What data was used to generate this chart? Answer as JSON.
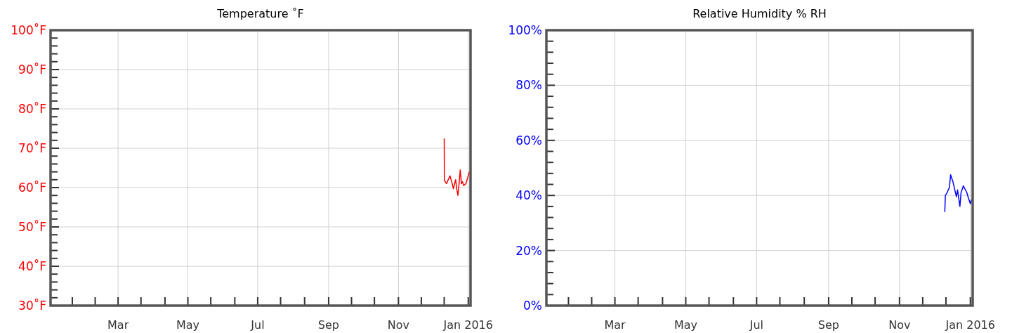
{
  "chart_data": [
    {
      "type": "line",
      "title": "Temperature ˚F",
      "grid": true,
      "marker": "none",
      "line_style": "solid",
      "xlim": [
        "2015-01-01",
        "2016-01-03"
      ],
      "xticks": [
        {
          "value": "2015-01-20",
          "label": null
        },
        {
          "value": "2015-02-09",
          "label": null
        },
        {
          "value": "2015-03-01",
          "label": "Mar"
        },
        {
          "value": "2015-03-21",
          "label": null
        },
        {
          "value": "2015-04-11",
          "label": null
        },
        {
          "value": "2015-05-01",
          "label": "May"
        },
        {
          "value": "2015-05-21",
          "label": null
        },
        {
          "value": "2015-06-11",
          "label": null
        },
        {
          "value": "2015-07-01",
          "label": "Jul"
        },
        {
          "value": "2015-07-21",
          "label": null
        },
        {
          "value": "2015-08-11",
          "label": null
        },
        {
          "value": "2015-09-01",
          "label": "Sep"
        },
        {
          "value": "2015-09-21",
          "label": null
        },
        {
          "value": "2015-10-11",
          "label": null
        },
        {
          "value": "2015-11-01",
          "label": "Nov"
        },
        {
          "value": "2015-11-21",
          "label": null
        },
        {
          "value": "2015-12-11",
          "label": null
        },
        {
          "value": "2016-01-01",
          "label": "Jan 2016"
        }
      ],
      "ylim": [
        30,
        100
      ],
      "yticks": [
        {
          "value": 30,
          "label": "30˚F"
        },
        {
          "value": 32,
          "label": null
        },
        {
          "value": 34,
          "label": null
        },
        {
          "value": 36,
          "label": null
        },
        {
          "value": 38,
          "label": null
        },
        {
          "value": 40,
          "label": "40˚F"
        },
        {
          "value": 42,
          "label": null
        },
        {
          "value": 44,
          "label": null
        },
        {
          "value": 46,
          "label": null
        },
        {
          "value": 48,
          "label": null
        },
        {
          "value": 50,
          "label": "50˚F"
        },
        {
          "value": 52,
          "label": null
        },
        {
          "value": 54,
          "label": null
        },
        {
          "value": 56,
          "label": null
        },
        {
          "value": 58,
          "label": null
        },
        {
          "value": 60,
          "label": "60˚F"
        },
        {
          "value": 62,
          "label": null
        },
        {
          "value": 64,
          "label": null
        },
        {
          "value": 66,
          "label": null
        },
        {
          "value": 68,
          "label": null
        },
        {
          "value": 70,
          "label": "70˚F"
        },
        {
          "value": 72,
          "label": null
        },
        {
          "value": 74,
          "label": null
        },
        {
          "value": 76,
          "label": null
        },
        {
          "value": 78,
          "label": null
        },
        {
          "value": 80,
          "label": "80˚F"
        },
        {
          "value": 82,
          "label": null
        },
        {
          "value": 84,
          "label": null
        },
        {
          "value": 86,
          "label": null
        },
        {
          "value": 88,
          "label": null
        },
        {
          "value": 90,
          "label": "90˚F"
        },
        {
          "value": 92,
          "label": null
        },
        {
          "value": 94,
          "label": null
        },
        {
          "value": 96,
          "label": null
        },
        {
          "value": 98,
          "label": null
        },
        {
          "value": 100,
          "label": "100˚F"
        }
      ],
      "series": [
        {
          "color": "#ff0000",
          "x": [
            "2015-12-11T00:00",
            "2015-12-11T03:00",
            "2015-12-13",
            "2015-12-16",
            "2015-12-18",
            "2015-12-19",
            "2015-12-21",
            "2015-12-22",
            "2015-12-23",
            "2015-12-24",
            "2015-12-25",
            "2015-12-26",
            "2015-12-27",
            "2015-12-28",
            "2015-12-30",
            "2016-01-01",
            "2016-01-02"
          ],
          "values": [
            72.5,
            61.8,
            61,
            63,
            61,
            59.7,
            62,
            59.5,
            58,
            61,
            64.5,
            61,
            61.5,
            60.5,
            61,
            63,
            64
          ]
        }
      ]
    },
    {
      "type": "line",
      "title": "Relative Humidity % RH",
      "grid": true,
      "marker": "none",
      "line_style": "solid",
      "xlim": [
        "2015-01-01",
        "2016-01-03"
      ],
      "xticks": [
        {
          "value": "2015-01-20",
          "label": null
        },
        {
          "value": "2015-02-09",
          "label": null
        },
        {
          "value": "2015-03-01",
          "label": "Mar"
        },
        {
          "value": "2015-03-21",
          "label": null
        },
        {
          "value": "2015-04-11",
          "label": null
        },
        {
          "value": "2015-05-01",
          "label": "May"
        },
        {
          "value": "2015-05-21",
          "label": null
        },
        {
          "value": "2015-06-11",
          "label": null
        },
        {
          "value": "2015-07-01",
          "label": "Jul"
        },
        {
          "value": "2015-07-21",
          "label": null
        },
        {
          "value": "2015-08-11",
          "label": null
        },
        {
          "value": "2015-09-01",
          "label": "Sep"
        },
        {
          "value": "2015-09-21",
          "label": null
        },
        {
          "value": "2015-10-11",
          "label": null
        },
        {
          "value": "2015-11-01",
          "label": "Nov"
        },
        {
          "value": "2015-11-21",
          "label": null
        },
        {
          "value": "2015-12-11",
          "label": null
        },
        {
          "value": "2016-01-01",
          "label": "Jan 2016"
        }
      ],
      "ylim": [
        0,
        100
      ],
      "yticks": [
        {
          "value": 0,
          "label": "0%"
        },
        {
          "value": 4,
          "label": null
        },
        {
          "value": 8,
          "label": null
        },
        {
          "value": 12,
          "label": null
        },
        {
          "value": 16,
          "label": null
        },
        {
          "value": 20,
          "label": "20%"
        },
        {
          "value": 24,
          "label": null
        },
        {
          "value": 28,
          "label": null
        },
        {
          "value": 32,
          "label": null
        },
        {
          "value": 36,
          "label": null
        },
        {
          "value": 40,
          "label": "40%"
        },
        {
          "value": 44,
          "label": null
        },
        {
          "value": 48,
          "label": null
        },
        {
          "value": 52,
          "label": null
        },
        {
          "value": 56,
          "label": null
        },
        {
          "value": 60,
          "label": "60%"
        },
        {
          "value": 64,
          "label": null
        },
        {
          "value": 68,
          "label": null
        },
        {
          "value": 72,
          "label": null
        },
        {
          "value": 76,
          "label": null
        },
        {
          "value": 80,
          "label": "80%"
        },
        {
          "value": 84,
          "label": null
        },
        {
          "value": 88,
          "label": null
        },
        {
          "value": 92,
          "label": null
        },
        {
          "value": 96,
          "label": null
        },
        {
          "value": 100,
          "label": "100%"
        }
      ],
      "series": [
        {
          "color": "#0000ff",
          "x": [
            "2015-12-10",
            "2015-12-10T12:00",
            "2015-12-12",
            "2015-12-14",
            "2015-12-15",
            "2015-12-17",
            "2015-12-20",
            "2015-12-21",
            "2015-12-23",
            "2015-12-24",
            "2015-12-26",
            "2015-12-29",
            "2015-12-30",
            "2016-01-01",
            "2016-01-02"
          ],
          "values": [
            34,
            40,
            41,
            43,
            47.5,
            45,
            39.5,
            42,
            36,
            41,
            43.5,
            41,
            39.5,
            37,
            38.5
          ]
        }
      ]
    }
  ]
}
